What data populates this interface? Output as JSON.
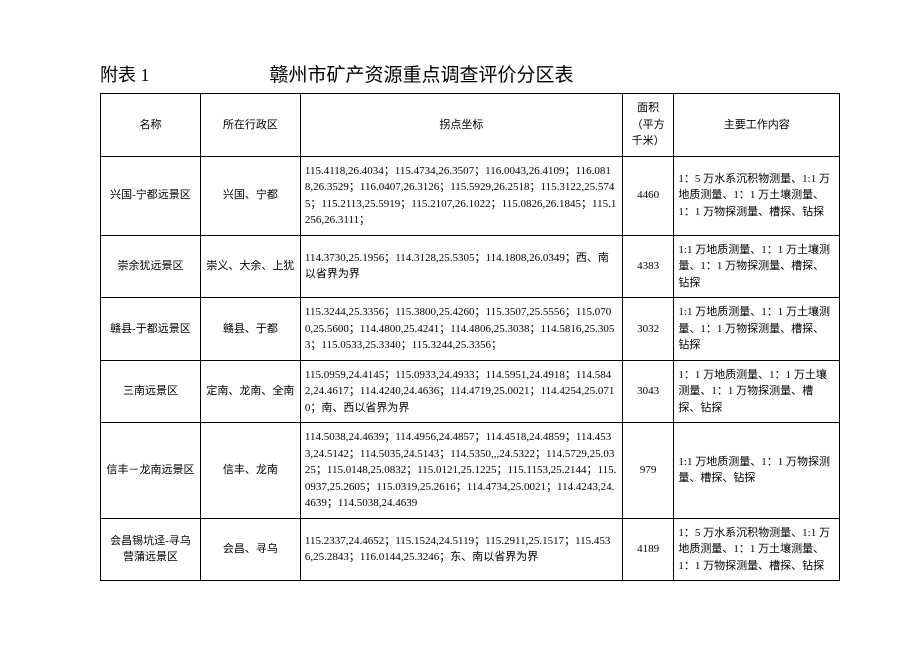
{
  "header": {
    "appendix_label": "附表 1",
    "title": "赣州市矿产资源重点调查评价分区表"
  },
  "table": {
    "columns": {
      "name": "名称",
      "region": "所在行政区",
      "coords": "拐点坐标",
      "area": "面积（平方千米）",
      "work": "主要工作内容"
    },
    "rows": [
      {
        "name": "兴国-宁都远景区",
        "region": "兴国、宁都",
        "coords": "115.4118,26.4034；115.4734,26.3507；116.0043,26.4109；116.0818,26.3529；116.0407,26.3126；115.5929,26.2518；115.3122,25.5745；115.2113,25.5919；115.2107,26.1022；115.0826,26.1845；115.1256,26.3111；",
        "area": "4460",
        "work": "1：5 万水系沉积物测量、1:1 万地质测量、1：1 万土壤测量、1：1 万物探测量、槽探、钻探"
      },
      {
        "name": "崇余犹远景区",
        "region": "崇义、大余、上犹",
        "coords": "114.3730,25.1956；114.3128,25.5305；114.1808,26.0349；西、南以省界为界",
        "area": "4383",
        "work": "1:1 万地质测量、1：1 万土壤测量、1：1 万物探测量、槽探、钻探"
      },
      {
        "name": "赣县-于都远景区",
        "region": "赣县、于都",
        "coords": "115.3244,25.3356；115.3800,25.4260；115.3507,25.5556；115.0700,25.5600；114.4800,25.4241；114.4806,25.3038；114.5816,25.3053；115.0533,25.3340；115.3244,25.3356；",
        "area": "3032",
        "work": "1:1 万地质测量、1：1 万土壤测量、1：1 万物探测量、槽探、钻探"
      },
      {
        "name": "三南远景区",
        "region": "定南、龙南、全南",
        "coords": "115.0959,24.4145；115.0933,24.4933；114.5951,24.4918；114.5842,24.4617；114.4240,24.4636；114.4719,25.0021；114.4254,25.0710；南、西以省界为界",
        "area": "3043",
        "work": "1：1 万地质测量、1：1 万土壤测量、1：1 万物探测量、槽探、钻探"
      },
      {
        "name": "信丰－龙南远景区",
        "region": "信丰、龙南",
        "coords": "114.5038,24.4639；114.4956,24.4857；114.4518,24.4859；114.4533,24.5142；114.5035,24.5143；114.5350,,,24.5322；114.5729,25.0325；115.0148,25.0832；115.0121,25.1225；115.1153,25.2144；115.0937,25.2605；115.0319,25.2616；114.4734,25.0021；114.4243,24.4639；114.5038,24.4639",
        "area": "979",
        "work": "1:1 万地质测量、1：1 万物探测量、槽探、钻探"
      },
      {
        "name": "会昌锡坑迳-寻乌营蒲远景区",
        "region": "会昌、寻乌",
        "coords": "115.2337,24.4652；115.1524,24.5119；115.2911,25.1517；115.4536,25.2843；116.0144,25.3246；东、南以省界为界",
        "area": "4189",
        "work": "1：5 万水系沉积物测量、1:1 万地质测量、1：1 万土壤测量、1：1 万物探测量、槽探、钻探"
      }
    ]
  }
}
